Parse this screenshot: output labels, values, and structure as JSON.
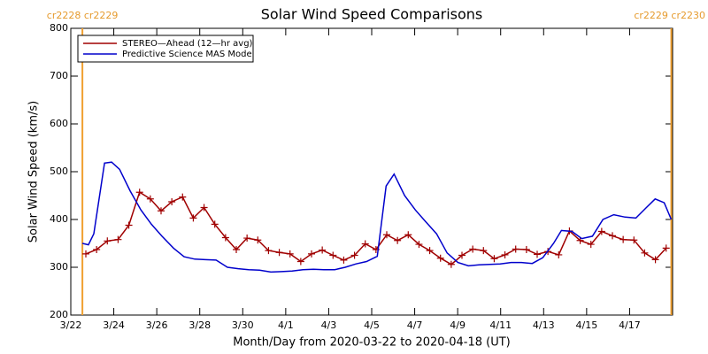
{
  "chart_data": {
    "type": "line",
    "title": "Solar Wind Speed Comparisons",
    "x_label": "Month/Day from 2020-03-22 to 2020-04-18 (UT)",
    "y_label": "Solar Wind Speed (km/s)",
    "xlim": [
      0,
      28
    ],
    "xticks": [
      {
        "value": 0,
        "label": "3/22"
      },
      {
        "value": 2,
        "label": "3/24"
      },
      {
        "value": 4,
        "label": "3/26"
      },
      {
        "value": 6,
        "label": "3/28"
      },
      {
        "value": 8,
        "label": "3/30"
      },
      {
        "value": 10,
        "label": "4/1"
      },
      {
        "value": 12,
        "label": "4/3"
      },
      {
        "value": 14,
        "label": "4/5"
      },
      {
        "value": 16,
        "label": "4/7"
      },
      {
        "value": 18,
        "label": "4/9"
      },
      {
        "value": 20,
        "label": "4/11"
      },
      {
        "value": 22,
        "label": "4/13"
      },
      {
        "value": 24,
        "label": "4/15"
      },
      {
        "value": 26,
        "label": "4/17"
      }
    ],
    "ylim": [
      200,
      800
    ],
    "yticks": [
      200,
      300,
      400,
      500,
      600,
      700,
      800
    ],
    "annotations": [
      {
        "x": 0.54,
        "label": "cr2228 cr2229"
      },
      {
        "x": 27.94,
        "label": "cr2229 cr2230"
      }
    ],
    "annotation_color": "#f0a030",
    "legend": "upper left",
    "series": [
      {
        "name": "STEREO—Ahead (12—hr avg)",
        "color": "#a00000",
        "marker": "+",
        "x": [
          0.7,
          1.2,
          1.7,
          2.2,
          2.7,
          3.2,
          3.7,
          4.2,
          4.7,
          5.2,
          5.7,
          6.2,
          6.7,
          7.2,
          7.7,
          8.2,
          8.7,
          9.2,
          9.7,
          10.2,
          10.7,
          11.2,
          11.7,
          12.2,
          12.7,
          13.2,
          13.7,
          14.2,
          14.7,
          15.2,
          15.7,
          16.2,
          16.7,
          17.2,
          17.7,
          18.2,
          18.7,
          19.2,
          19.7,
          20.2,
          20.7,
          21.2,
          21.7,
          22.2,
          22.7,
          23.2,
          23.7,
          24.2,
          24.7,
          25.2,
          25.7,
          26.2,
          26.7,
          27.2,
          27.7
        ],
        "values": [
          328,
          337,
          355,
          358,
          388,
          457,
          443,
          418,
          437,
          447,
          403,
          425,
          390,
          362,
          337,
          361,
          357,
          335,
          331,
          328,
          312,
          328,
          336,
          325,
          315,
          325,
          349,
          337,
          368,
          356,
          368,
          348,
          335,
          319,
          306,
          325,
          338,
          335,
          318,
          326,
          338,
          337,
          327,
          333,
          326,
          376,
          356,
          348,
          375,
          366,
          358,
          357,
          330,
          316,
          340
        ]
      },
      {
        "name": "Predictive Science MAS Model",
        "color": "#0000cc",
        "x": [
          0.54,
          0.82,
          1.07,
          1.57,
          1.9,
          2.27,
          2.76,
          3.26,
          3.75,
          4.24,
          4.78,
          5.27,
          5.77,
          6.26,
          6.76,
          7.29,
          7.79,
          8.28,
          8.78,
          9.31,
          9.81,
          10.3,
          10.8,
          11.29,
          11.78,
          12.28,
          12.77,
          13.27,
          13.76,
          14.26,
          14.67,
          15.04,
          15.53,
          16.03,
          16.52,
          17.02,
          17.51,
          18.01,
          18.5,
          18.99,
          19.49,
          19.98,
          20.48,
          20.97,
          21.47,
          21.96,
          22.46,
          22.83,
          23.32,
          23.77,
          24.27,
          24.76,
          25.26,
          25.79,
          26.29,
          26.78,
          27.19,
          27.61,
          27.94
        ],
        "values": [
          350,
          347,
          370,
          518,
          520,
          505,
          460,
          420,
          390,
          365,
          340,
          322,
          317,
          316,
          315,
          300,
          297,
          295,
          294,
          290,
          291,
          292,
          295,
          296,
          295,
          295,
          300,
          307,
          312,
          323,
          470,
          495,
          450,
          420,
          395,
          370,
          330,
          310,
          303,
          305,
          306,
          307,
          310,
          310,
          308,
          320,
          350,
          377,
          375,
          360,
          365,
          400,
          410,
          405,
          403,
          425,
          443,
          435,
          400
        ]
      }
    ]
  }
}
